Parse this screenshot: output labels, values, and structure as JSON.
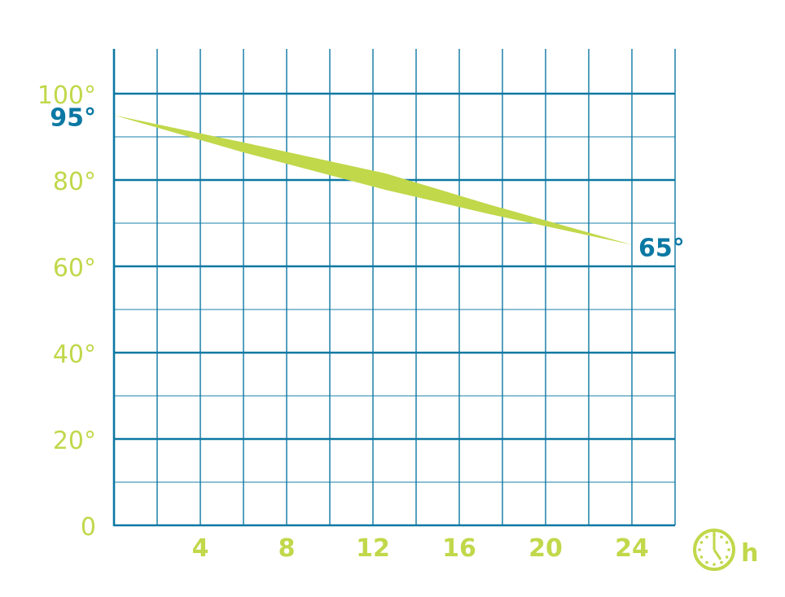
{
  "chart_data": {
    "type": "area",
    "xlim": [
      0,
      26
    ],
    "ylim": [
      0,
      110
    ],
    "x_ticks": [
      4,
      8,
      12,
      16,
      20,
      24
    ],
    "x_tick_labels": [
      "4",
      "8",
      "12",
      "16",
      "20",
      "24"
    ],
    "y_ticks": [
      0,
      20,
      40,
      60,
      80,
      100
    ],
    "y_tick_labels": [
      "0",
      "20°",
      "40°",
      "60°",
      "80°",
      "100°"
    ],
    "grid": true,
    "x_unit_label": "h",
    "x_unit_icon": "clock-icon",
    "band": {
      "x": [
        0,
        6,
        12.6,
        17.4,
        24
      ],
      "upper": [
        95,
        88.7,
        81.5,
        74.3,
        65
      ],
      "lower": [
        95,
        86.4,
        77.7,
        72.1,
        65
      ]
    },
    "annotations": [
      {
        "text": "95°",
        "x": 0,
        "y": 95
      },
      {
        "text": "65°",
        "x": 24,
        "y": 65
      }
    ],
    "colors": {
      "grid": "#0b78a3",
      "band": "#c0d84a",
      "tick_labels": "#c0d84a",
      "annotations": "#0b78a3"
    }
  }
}
